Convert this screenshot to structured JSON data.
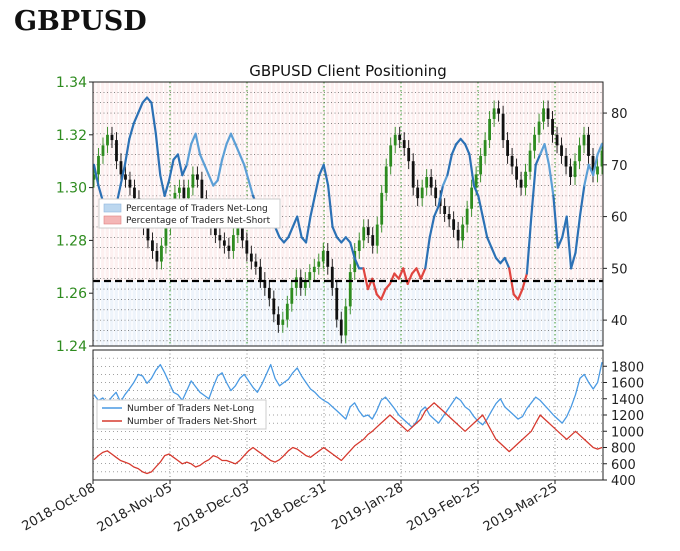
{
  "page_heading": "GBPUSD",
  "chart_data": [
    {
      "type": "line",
      "title": "GBPUSD Client Positioning",
      "x": [
        "2018-Oct-08",
        "2018-Nov-05",
        "2018-Dec-03",
        "2018-Dec-31",
        "2019-Jan-28",
        "2019-Feb-25",
        "2019-Mar-25"
      ],
      "y_left_range": [
        1.24,
        1.34
      ],
      "y_left_ticks": [
        "1.24",
        "1.26",
        "1.28",
        "1.30",
        "1.32",
        "1.34"
      ],
      "y_right_range": [
        35,
        86
      ],
      "y_right_ticks": [
        "40",
        "50",
        "60",
        "70",
        "80"
      ],
      "reference_line": 50,
      "legend": [
        "Percentage of Traders Net-Long",
        "Percentage of Traders Net-Short"
      ],
      "legend_position": "center-left",
      "grid": true,
      "price_series": [
        1.305,
        1.312,
        1.316,
        1.32,
        1.318,
        1.31,
        1.305,
        1.303,
        1.3,
        1.296,
        1.29,
        1.285,
        1.28,
        1.276,
        1.272,
        1.278,
        1.285,
        1.292,
        1.298,
        1.3,
        1.296,
        1.3,
        1.305,
        1.303,
        1.296,
        1.29,
        1.285,
        1.282,
        1.28,
        1.278,
        1.276,
        1.282,
        1.285,
        1.28,
        1.275,
        1.272,
        1.27,
        1.265,
        1.262,
        1.258,
        1.252,
        1.248,
        1.25,
        1.256,
        1.262,
        1.266,
        1.262,
        1.265,
        1.268,
        1.27,
        1.272,
        1.276,
        1.27,
        1.262,
        1.25,
        1.244,
        1.255,
        1.268,
        1.276,
        1.28,
        1.285,
        1.282,
        1.278,
        1.286,
        1.298,
        1.308,
        1.316,
        1.32,
        1.318,
        1.315,
        1.31,
        1.3,
        1.296,
        1.3,
        1.304,
        1.3,
        1.296,
        1.293,
        1.29,
        1.288,
        1.284,
        1.28,
        1.286,
        1.292,
        1.3,
        1.305,
        1.312,
        1.318,
        1.326,
        1.33,
        1.328,
        1.318,
        1.312,
        1.308,
        1.303,
        1.3,
        1.306,
        1.314,
        1.32,
        1.325,
        1.33,
        1.326,
        1.32,
        1.316,
        1.312,
        1.308,
        1.304,
        1.31,
        1.316,
        1.32,
        1.312,
        1.305,
        1.308,
        1.314
      ],
      "net_long_pct": [
        70,
        66,
        63,
        62,
        60,
        62,
        66,
        70,
        75,
        78,
        80,
        82,
        83,
        82,
        76,
        68,
        64,
        67,
        71,
        72,
        68,
        70,
        74,
        76,
        72,
        70,
        68,
        66,
        67,
        71,
        74,
        76,
        74,
        72,
        70,
        67,
        64,
        62,
        60,
        62,
        60,
        58,
        56,
        55,
        56,
        58,
        60,
        56,
        55,
        60,
        64,
        68,
        70,
        66,
        58,
        56,
        55,
        56,
        55,
        52,
        50,
        50,
        46,
        48,
        45,
        44,
        46,
        47,
        49,
        48,
        50,
        47,
        49,
        50,
        48,
        50,
        56,
        60,
        62,
        66,
        68,
        72,
        74,
        75,
        74,
        72,
        66,
        64,
        60,
        56,
        54,
        52,
        51,
        52,
        50,
        45,
        44,
        46,
        49,
        60,
        70,
        72,
        74,
        70,
        64,
        54,
        56,
        60,
        50,
        53,
        60,
        66,
        70,
        68,
        72,
        74
      ],
      "legend_long_color": "#bcd7ef",
      "legend_short_color": "#f4b6b6",
      "net_long_color": "#2b71b5",
      "net_short_color": "#e0453f"
    },
    {
      "type": "line",
      "y_range": [
        400,
        2000
      ],
      "y_ticks": [
        "400",
        "600",
        "800",
        "1000",
        "1200",
        "1400",
        "1600",
        "1800"
      ],
      "legend_position": "center-left",
      "grid": true,
      "series": [
        {
          "name": "Number of Traders Net-Long",
          "color": "#4a9ae3",
          "values": [
            1450,
            1380,
            1410,
            1350,
            1420,
            1480,
            1360,
            1450,
            1520,
            1600,
            1700,
            1680,
            1590,
            1650,
            1750,
            1820,
            1720,
            1600,
            1480,
            1450,
            1380,
            1500,
            1620,
            1550,
            1480,
            1440,
            1400,
            1550,
            1680,
            1720,
            1600,
            1500,
            1560,
            1650,
            1700,
            1620,
            1540,
            1480,
            1580,
            1700,
            1820,
            1650,
            1560,
            1600,
            1640,
            1720,
            1780,
            1680,
            1600,
            1520,
            1480,
            1420,
            1380,
            1350,
            1300,
            1250,
            1200,
            1150,
            1300,
            1350,
            1250,
            1180,
            1200,
            1150,
            1250,
            1380,
            1420,
            1350,
            1280,
            1200,
            1150,
            1100,
            1050,
            1120,
            1250,
            1300,
            1200,
            1150,
            1100,
            1180,
            1260,
            1340,
            1420,
            1380,
            1300,
            1260,
            1180,
            1120,
            1080,
            1150,
            1250,
            1340,
            1400,
            1300,
            1250,
            1200,
            1150,
            1180,
            1280,
            1350,
            1420,
            1380,
            1320,
            1260,
            1200,
            1150,
            1100,
            1180,
            1300,
            1450,
            1650,
            1700,
            1600,
            1520,
            1600,
            1850
          ]
        },
        {
          "name": "Number of Traders Net-Short",
          "color": "#d63a2f",
          "values": [
            650,
            700,
            740,
            760,
            720,
            680,
            640,
            620,
            600,
            560,
            540,
            500,
            480,
            500,
            560,
            620,
            700,
            720,
            680,
            640,
            600,
            620,
            600,
            560,
            580,
            620,
            650,
            700,
            680,
            640,
            640,
            620,
            600,
            640,
            700,
            760,
            800,
            760,
            720,
            680,
            640,
            620,
            650,
            700,
            760,
            800,
            780,
            740,
            700,
            680,
            720,
            760,
            800,
            760,
            720,
            680,
            640,
            700,
            760,
            820,
            860,
            900,
            960,
            1000,
            1050,
            1100,
            1150,
            1200,
            1150,
            1100,
            1050,
            1000,
            1050,
            1100,
            1150,
            1250,
            1300,
            1350,
            1300,
            1250,
            1200,
            1150,
            1100,
            1050,
            1000,
            1050,
            1100,
            1150,
            1200,
            1100,
            1000,
            900,
            850,
            800,
            750,
            800,
            850,
            900,
            950,
            1000,
            1100,
            1200,
            1150,
            1100,
            1050,
            1000,
            950,
            900,
            950,
            1000,
            950,
            900,
            850,
            800,
            780,
            800
          ]
        }
      ]
    }
  ]
}
